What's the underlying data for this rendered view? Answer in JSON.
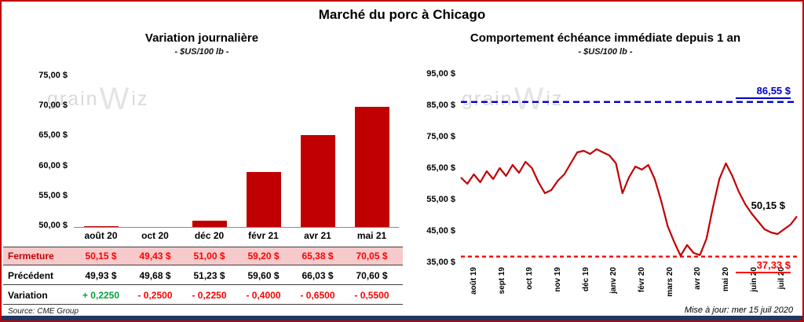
{
  "window": {
    "title": "Marché du porc à Chicago",
    "source": "Source: CME Group",
    "updated": "Mise à jour: mer 15 juil 2020",
    "wm_prefix": "grain",
    "wm_mark": "W",
    "wm_suffix": "iz",
    "border_color": "#C00000",
    "footer_bar_color": "#1F3864"
  },
  "chart_data": [
    {
      "type": "bar",
      "title": "Variation journalière",
      "subtitle": "- $US/100 lb -",
      "categories": [
        "août 20",
        "oct 20",
        "déc 20",
        "févr 21",
        "avr 21",
        "mai 21"
      ],
      "values": [
        50.15,
        49.43,
        51.0,
        59.2,
        65.38,
        70.05
      ],
      "ylim": [
        50,
        75
      ],
      "yticks": [
        "75,00 $",
        "70,00 $",
        "65,00 $",
        "60,00 $",
        "55,00 $",
        "50,00 $"
      ],
      "bar_color": "#C00000",
      "grid": false,
      "table_rows": [
        {
          "label": "Fermeture",
          "bg": "#F6C9CA",
          "label_color": "#C00000",
          "values": [
            "50,15 $",
            "49,43 $",
            "51,00 $",
            "59,20 $",
            "65,38 $",
            "70,05 $"
          ],
          "value_colors": [
            "#FF0000",
            "#FF0000",
            "#FF0000",
            "#FF0000",
            "#FF0000",
            "#FF0000"
          ]
        },
        {
          "label": "Précédent",
          "bg": "",
          "label_color": "#000000",
          "values": [
            "49,93 $",
            "49,68 $",
            "51,23 $",
            "59,60 $",
            "66,03 $",
            "70,60 $"
          ],
          "value_colors": [
            "#000000",
            "#000000",
            "#000000",
            "#000000",
            "#000000",
            "#000000"
          ]
        },
        {
          "label": "Variation",
          "bg": "",
          "label_color": "#000000",
          "values": [
            "+ 0,2250",
            "- 0,2500",
            "- 0,2250",
            "- 0,4000",
            "- 0,6500",
            "- 0,5500"
          ],
          "value_colors": [
            "#00A43B",
            "#FF0000",
            "#FF0000",
            "#FF0000",
            "#FF0000",
            "#FF0000"
          ]
        }
      ]
    },
    {
      "type": "line",
      "title": "Comportement échéance immédiate depuis 1 an",
      "subtitle": "- $US/100 lb -",
      "x_labels": [
        "août 19",
        "sept 19",
        "oct 19",
        "nov 19",
        "déc 19",
        "janv 20",
        "févr 20",
        "mars 20",
        "avr 20",
        "mai 20",
        "juin 20",
        "juil 20"
      ],
      "ylim": [
        35,
        95
      ],
      "yticks": [
        "95,00 $",
        "85,00 $",
        "75,00 $",
        "65,00 $",
        "55,00 $",
        "45,00 $",
        "35,00 $"
      ],
      "line_color": "#C00000",
      "grid": false,
      "values": [
        62.5,
        60.5,
        63.5,
        61.0,
        64.5,
        62.0,
        65.5,
        63.0,
        66.5,
        64.0,
        67.5,
        65.5,
        61.0,
        57.5,
        58.5,
        61.5,
        63.5,
        67.0,
        70.5,
        71.0,
        70.0,
        71.5,
        70.5,
        69.5,
        67.0,
        57.5,
        62.5,
        66.0,
        65.0,
        66.5,
        62.0,
        55.0,
        47.0,
        42.0,
        37.6,
        41.0,
        38.5,
        37.8,
        43.0,
        53.0,
        62.0,
        67.0,
        63.0,
        58.0,
        54.0,
        51.0,
        48.5,
        46.0,
        45.0,
        44.5,
        46.0,
        47.5,
        50.15
      ],
      "ref_lines": [
        {
          "value": 86.55,
          "label": "86,55 $",
          "color": "#0000C8",
          "dash": "8 5",
          "label_position": "above"
        },
        {
          "value": 37.33,
          "label": "37,33 $",
          "color": "#FF0000",
          "dash": "5 4",
          "label_position": "below"
        }
      ],
      "last_label": {
        "value": 50.15,
        "label": "50,15 $",
        "color": "#000000"
      }
    }
  ]
}
